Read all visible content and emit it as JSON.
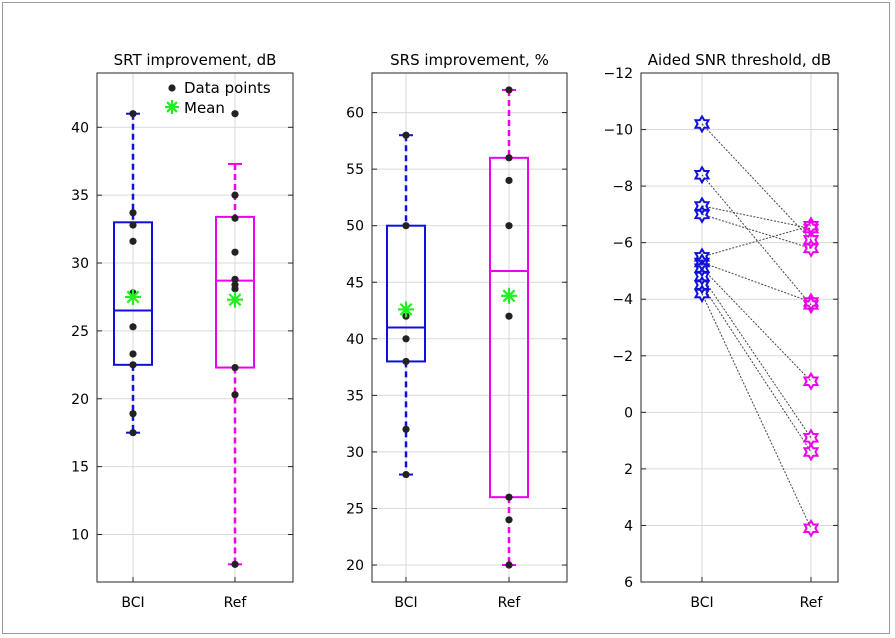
{
  "colors": {
    "bci": "#1010dd",
    "ref": "#ee00ee",
    "mean": "#22ee22",
    "points": "#222222",
    "grid": "#d9d9d9",
    "link": "#444444"
  },
  "legend": {
    "points_label": "Data points",
    "mean_label": "Mean",
    "placement": "top-right of first panel"
  },
  "chart_data": [
    {
      "type": "box",
      "title": "SRT improvement, dB",
      "xlabel": "",
      "ylabel": "",
      "categories": [
        "BCI",
        "Ref"
      ],
      "ylim": [
        6.5,
        44
      ],
      "yticks": [
        10,
        15,
        20,
        25,
        30,
        35,
        40
      ],
      "grid": true,
      "series": [
        {
          "category": "BCI",
          "whisker_low": 17.5,
          "q1": 22.5,
          "median": 26.5,
          "q3": 33,
          "whisker_high": 41,
          "mean": 27.5,
          "points": [
            41,
            33.7,
            32.8,
            31.6,
            27.8,
            25.3,
            23.3,
            22.5,
            18.9,
            17.5
          ]
        },
        {
          "category": "Ref",
          "whisker_low": 7.8,
          "q1": 22.3,
          "median": 28.7,
          "q3": 33.4,
          "whisker_high": 37.3,
          "mean": 27.3,
          "points": [
            41,
            35,
            33.3,
            30.8,
            28.8,
            28.4,
            28.1,
            22.3,
            20.3,
            7.8
          ]
        }
      ]
    },
    {
      "type": "box",
      "title": "SRS improvement, %",
      "xlabel": "",
      "ylabel": "",
      "categories": [
        "BCI",
        "Ref"
      ],
      "ylim": [
        18.5,
        63.5
      ],
      "yticks": [
        20,
        25,
        30,
        35,
        40,
        45,
        50,
        55,
        60
      ],
      "grid": true,
      "series": [
        {
          "category": "BCI",
          "whisker_low": 28,
          "q1": 38,
          "median": 41,
          "q3": 50,
          "whisker_high": 58,
          "mean": 42.6,
          "points": [
            58,
            50,
            42,
            40,
            38,
            32,
            28
          ]
        },
        {
          "category": "Ref",
          "whisker_low": 20,
          "q1": 26,
          "median": 46,
          "q3": 56,
          "whisker_high": 62,
          "mean": 43.8,
          "points": [
            62,
            56,
            54,
            50,
            42,
            26,
            24,
            20
          ]
        }
      ]
    },
    {
      "type": "scatter",
      "title": "Aided SNR threshold, dB",
      "xlabel": "",
      "ylabel": "",
      "categories": [
        "BCI",
        "Ref"
      ],
      "ylim": [
        6,
        -12
      ],
      "yaxis_reversed": true,
      "yticks": [
        -12,
        -10,
        -8,
        -6,
        -4,
        -2,
        0,
        2,
        4,
        6
      ],
      "ytick_labels": [
        "−12",
        "−10",
        "−8",
        "−6",
        "−4",
        "−2",
        "0",
        "2",
        "4",
        "6"
      ],
      "grid": true,
      "marker": "hexagram",
      "pairs": [
        [
          -10.2,
          -6.1
        ],
        [
          -8.4,
          -3.8
        ],
        [
          -7.3,
          -6.5
        ],
        [
          -7.0,
          -5.8
        ],
        [
          -5.5,
          -6.6
        ],
        [
          -5.3,
          -3.9
        ],
        [
          -5.1,
          -1.1
        ],
        [
          -4.8,
          0.9
        ],
        [
          -4.5,
          1.4
        ],
        [
          -4.2,
          4.1
        ]
      ]
    }
  ]
}
